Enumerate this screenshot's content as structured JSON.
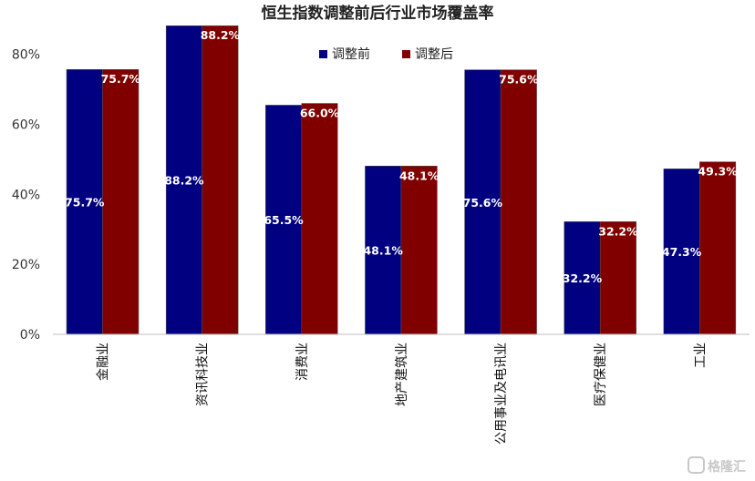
{
  "chart_data": {
    "type": "bar",
    "title": "恒生指数调整前后行业市场覆盖率",
    "categories": [
      "金融业",
      "资讯科技业",
      "消费业",
      "地产建筑业",
      "公用事业及电讯业",
      "医疗保健业",
      "工业"
    ],
    "series": [
      {
        "name": "调整前",
        "color": "#000080",
        "values": [
          75.7,
          88.2,
          65.5,
          48.1,
          75.6,
          32.2,
          47.3
        ]
      },
      {
        "name": "调整后",
        "color": "#800000",
        "values": [
          75.7,
          88.2,
          66.0,
          48.1,
          75.6,
          32.2,
          49.3
        ]
      }
    ],
    "value_labels": [
      [
        "75.7%",
        "88.2%",
        "65.5%",
        "48.1%",
        "75.6%",
        "32.2%",
        "47.3%"
      ],
      [
        "75.7%",
        "88.2%",
        "66.0%",
        "48.1%",
        "75.6%",
        "32.2%",
        "49.3%"
      ]
    ],
    "ylim": [
      0,
      88
    ],
    "yticks": [
      0,
      20,
      40,
      60,
      80
    ],
    "ytick_labels": [
      "0%",
      "20%",
      "40%",
      "60%",
      "80%"
    ],
    "xlabel": "",
    "ylabel": "",
    "grid": false,
    "legend_position": "top-center"
  },
  "watermark": {
    "text": "格隆汇"
  }
}
